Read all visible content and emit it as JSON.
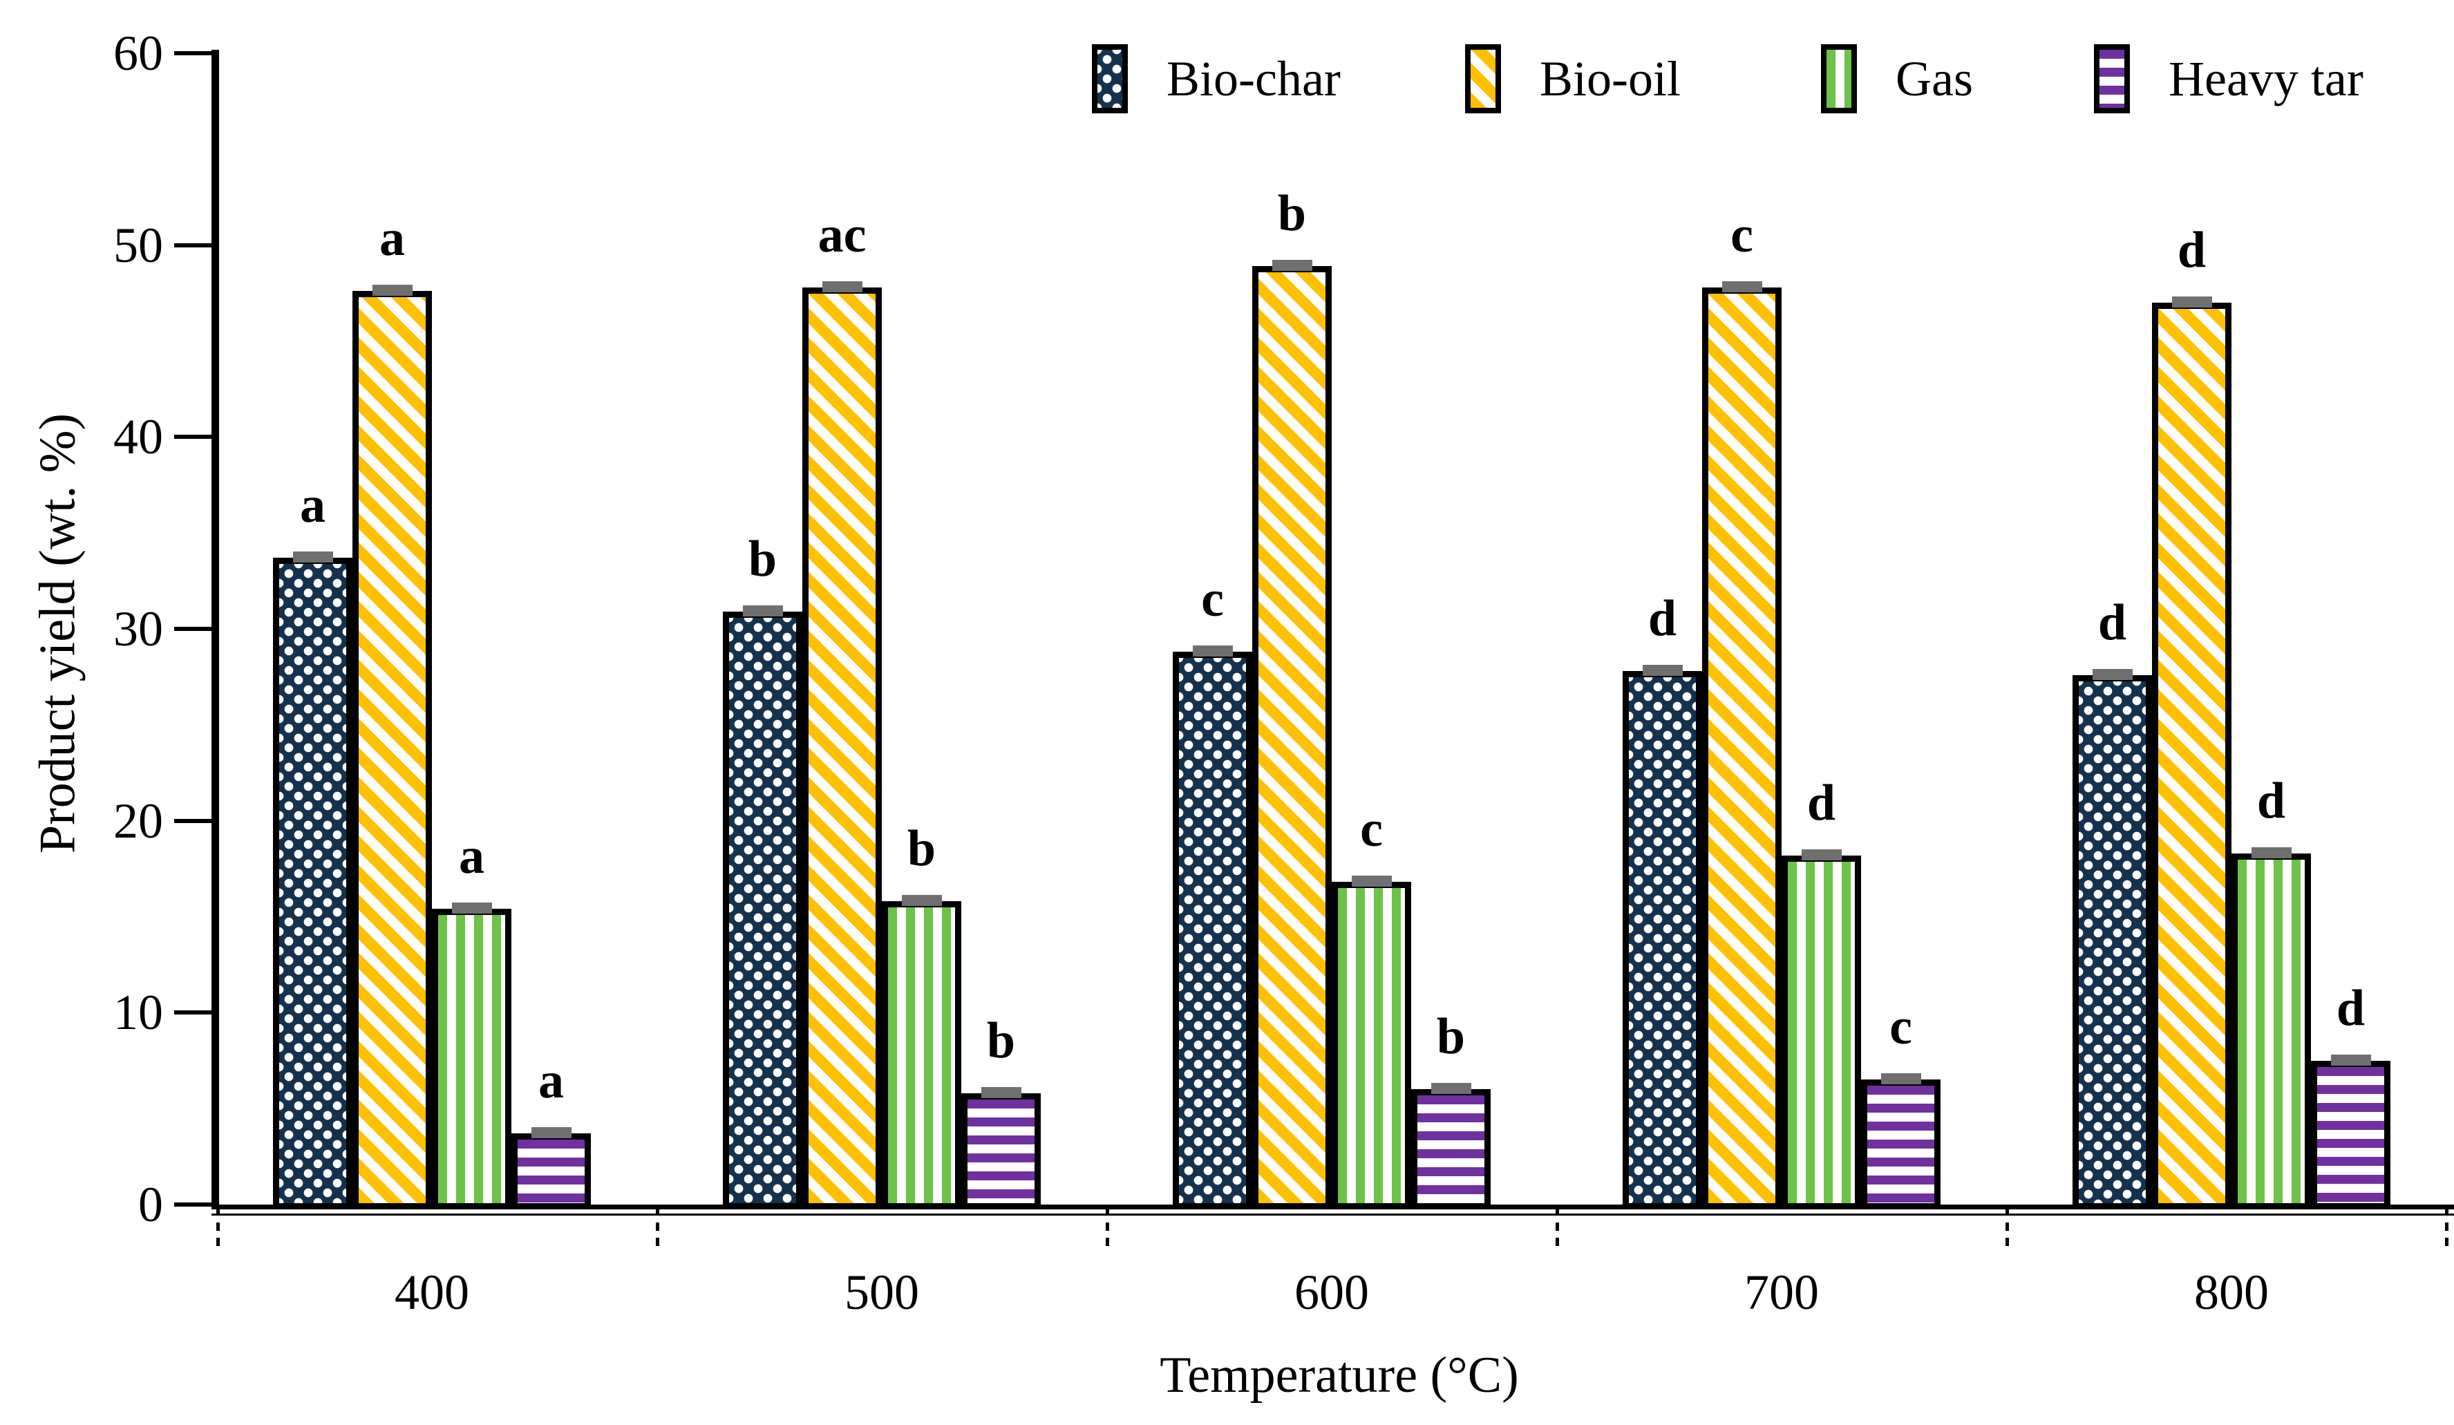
{
  "chart_data": {
    "type": "bar",
    "title": "",
    "xlabel": "Temperature (°C)",
    "ylabel": "Product yield (wt. %)",
    "ylim": [
      0,
      60
    ],
    "yticks": [
      "0",
      "10",
      "20",
      "30",
      "40",
      "50",
      "60"
    ],
    "ytick_values": [
      0,
      10,
      20,
      30,
      40,
      50,
      60
    ],
    "categories": [
      "400",
      "500",
      "600",
      "700",
      "800"
    ],
    "grid": false,
    "legend_position": "top-center",
    "error_cap_color": "#6f6f6f",
    "axis_color": "#000000",
    "series": [
      {
        "name": "Bio-char",
        "pattern": "checker",
        "color": "#14314e",
        "values": [
          33.7,
          30.9,
          28.8,
          27.8,
          27.6
        ],
        "errors": [
          0.3,
          0.3,
          0.2,
          0.2,
          0.2
        ],
        "letters": [
          "a",
          "b",
          "c",
          "d",
          "d"
        ]
      },
      {
        "name": "Bio-oil",
        "pattern": "diag",
        "color": "#ffc000",
        "values": [
          47.6,
          47.8,
          48.9,
          47.8,
          47.0
        ],
        "errors": [
          0.3,
          0.2,
          0.2,
          0.4,
          0.2
        ],
        "letters": [
          "a",
          "ac",
          "b",
          "c",
          "d"
        ]
      },
      {
        "name": "Gas",
        "pattern": "vert",
        "color": "#6bc348",
        "values": [
          15.4,
          15.8,
          16.8,
          18.2,
          18.3
        ],
        "errors": [
          0.3,
          0.3,
          0.5,
          0.5,
          0.4
        ],
        "letters": [
          "a",
          "b",
          "c",
          "d",
          "d"
        ]
      },
      {
        "name": "Heavy tar",
        "pattern": "horiz",
        "color": "#7030a0",
        "values": [
          3.7,
          5.8,
          6.0,
          6.5,
          7.5
        ],
        "errors": [
          0.2,
          0.2,
          0.3,
          0.3,
          0.4
        ],
        "letters": [
          "a",
          "b",
          "b",
          "c",
          "d"
        ]
      }
    ]
  }
}
